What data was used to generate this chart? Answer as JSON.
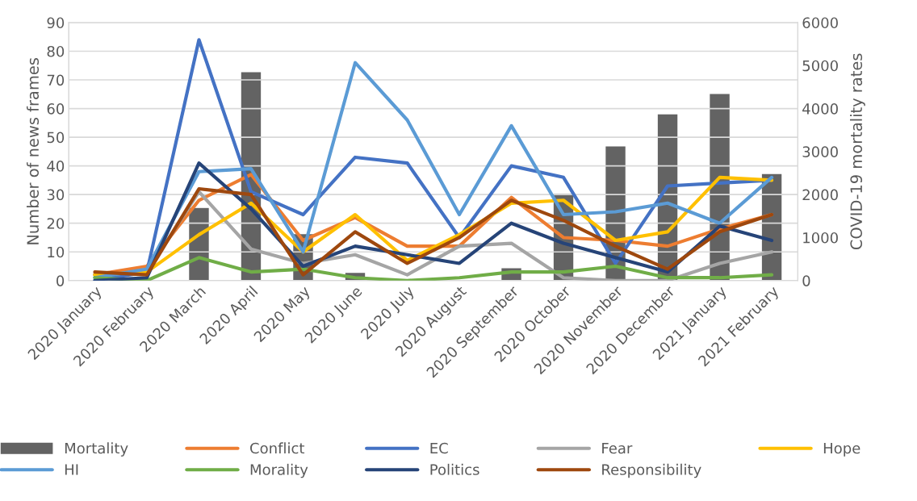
{
  "chart_data": {
    "type": "line",
    "ylabel": "Number of news frames",
    "y2label": "COVID-19 mortality rates",
    "categories": [
      "2020 January",
      "2020 February",
      "2020 March",
      "2020 April",
      "2020 May",
      "2020 June",
      "2020 July",
      "2020 August",
      "2020 September",
      "2020 October",
      "2020 November",
      "2020 December",
      "2021 January",
      "2021 February"
    ],
    "series": [
      {
        "name": "Mortality",
        "type": "bar",
        "axis": "y2",
        "color": "#636363",
        "values": [
          null,
          null,
          1700,
          4860,
          1090,
          190,
          null,
          null,
          300,
          2030,
          3130,
          3880,
          4350,
          2490
        ]
      },
      {
        "name": "Conflict",
        "color": "#ed7d31",
        "values": [
          2,
          5,
          28,
          37,
          14,
          22,
          12,
          12,
          29,
          15,
          14,
          12,
          18,
          23
        ]
      },
      {
        "name": "EC",
        "color": "#4472c4",
        "values": [
          0,
          3,
          84,
          31,
          23,
          43,
          41,
          15,
          40,
          36,
          6,
          33,
          34,
          35
        ]
      },
      {
        "name": "Fear",
        "color": "#a5a5a5",
        "values": [
          2,
          3,
          31,
          11,
          6,
          9,
          2,
          12,
          13,
          1,
          0,
          0,
          6,
          10
        ]
      },
      {
        "name": "Hope",
        "color": "#ffc000",
        "values": [
          2,
          3,
          16,
          27,
          10,
          23,
          7,
          16,
          27,
          28,
          14,
          17,
          36,
          35
        ]
      },
      {
        "name": "HI",
        "color": "#5b9bd5",
        "values": [
          1,
          4,
          38,
          39,
          10,
          76,
          56,
          23,
          54,
          23,
          24,
          27,
          20,
          36
        ]
      },
      {
        "name": "Morality",
        "color": "#70ad47",
        "values": [
          1,
          0,
          8,
          3,
          4,
          1,
          0,
          1,
          3,
          3,
          5,
          1,
          1,
          2
        ]
      },
      {
        "name": "Politics",
        "color": "#264478",
        "values": [
          0,
          1,
          41,
          25,
          5,
          12,
          9,
          6,
          20,
          13,
          8,
          3,
          19,
          14
        ]
      },
      {
        "name": "Responsibility",
        "color": "#9e480e",
        "values": [
          3,
          2,
          32,
          30,
          2,
          17,
          6,
          15,
          28,
          21,
          12,
          4,
          17,
          23
        ]
      }
    ],
    "ylim": [
      0,
      90
    ],
    "yticks": [
      0,
      10,
      20,
      30,
      40,
      50,
      60,
      70,
      80,
      90
    ],
    "y2lim": [
      0,
      6000
    ],
    "y2ticks": [
      0,
      1000,
      2000,
      3000,
      4000,
      5000,
      6000
    ],
    "grid": "y",
    "legend": "bottom",
    "line_style": "solid",
    "marker": "none"
  }
}
